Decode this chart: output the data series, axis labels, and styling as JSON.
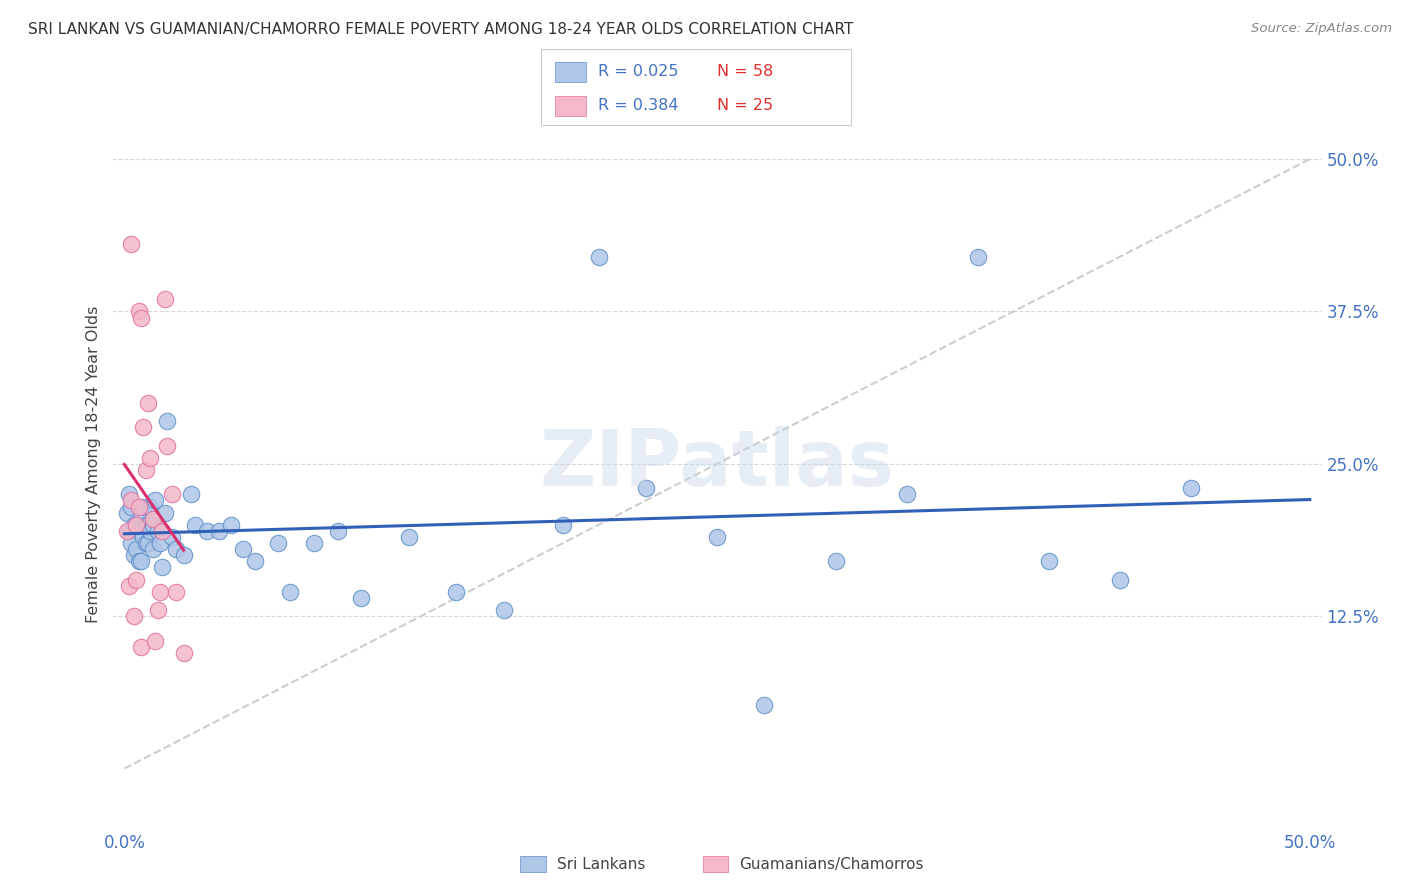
{
  "title": "SRI LANKAN VS GUAMANIAN/CHAMORRO FEMALE POVERTY AMONG 18-24 YEAR OLDS CORRELATION CHART",
  "source": "Source: ZipAtlas.com",
  "ylabel": "Female Poverty Among 18-24 Year Olds",
  "right_yticks": [
    "50.0%",
    "37.5%",
    "25.0%",
    "12.5%"
  ],
  "right_ytick_vals": [
    0.5,
    0.375,
    0.25,
    0.125
  ],
  "xlim": [
    0.0,
    0.5
  ],
  "ylim": [
    -0.05,
    0.55
  ],
  "legend_sri_r": "0.025",
  "legend_sri_n": "58",
  "legend_gua_r": "0.384",
  "legend_gua_n": "25",
  "watermark": "ZIPatlas",
  "sri_color": "#aec6e8",
  "gua_color": "#f4b8c8",
  "sri_edge_color": "#6090c8",
  "gua_edge_color": "#e070a0",
  "sri_line_color": "#3060b8",
  "gua_line_color": "#d83070",
  "diag_color": "#c8c8c8",
  "title_color": "#333333",
  "source_color": "#888888",
  "legend_r_color": "#4472c4",
  "legend_n_color": "#e03030",
  "axis_tick_color": "#4472c4",
  "grid_color": "#d8d8d8",
  "sri_x": [
    0.001,
    0.002,
    0.002,
    0.003,
    0.003,
    0.004,
    0.004,
    0.005,
    0.005,
    0.006,
    0.006,
    0.007,
    0.007,
    0.008,
    0.008,
    0.009,
    0.009,
    0.01,
    0.01,
    0.011,
    0.011,
    0.012,
    0.012,
    0.013,
    0.014,
    0.015,
    0.016,
    0.017,
    0.018,
    0.02,
    0.022,
    0.025,
    0.028,
    0.03,
    0.035,
    0.04,
    0.045,
    0.05,
    0.055,
    0.065,
    0.07,
    0.08,
    0.09,
    0.1,
    0.12,
    0.14,
    0.16,
    0.185,
    0.2,
    0.22,
    0.25,
    0.27,
    0.3,
    0.33,
    0.36,
    0.39,
    0.42,
    0.45
  ],
  "sri_y": [
    0.21,
    0.225,
    0.195,
    0.215,
    0.185,
    0.2,
    0.175,
    0.18,
    0.2,
    0.17,
    0.195,
    0.17,
    0.21,
    0.19,
    0.215,
    0.185,
    0.2,
    0.185,
    0.2,
    0.195,
    0.215,
    0.18,
    0.2,
    0.22,
    0.195,
    0.185,
    0.165,
    0.21,
    0.285,
    0.19,
    0.18,
    0.175,
    0.225,
    0.2,
    0.195,
    0.195,
    0.2,
    0.18,
    0.17,
    0.185,
    0.145,
    0.185,
    0.195,
    0.14,
    0.19,
    0.145,
    0.13,
    0.2,
    0.42,
    0.23,
    0.19,
    0.052,
    0.17,
    0.225,
    0.42,
    0.17,
    0.155,
    0.23
  ],
  "gua_x": [
    0.001,
    0.002,
    0.003,
    0.003,
    0.004,
    0.005,
    0.005,
    0.006,
    0.006,
    0.007,
    0.007,
    0.008,
    0.009,
    0.01,
    0.011,
    0.012,
    0.013,
    0.014,
    0.015,
    0.016,
    0.017,
    0.018,
    0.02,
    0.022,
    0.025
  ],
  "gua_y": [
    0.195,
    0.15,
    0.43,
    0.22,
    0.125,
    0.155,
    0.2,
    0.375,
    0.215,
    0.1,
    0.37,
    0.28,
    0.245,
    0.3,
    0.255,
    0.205,
    0.105,
    0.13,
    0.145,
    0.195,
    0.385,
    0.265,
    0.225,
    0.145,
    0.095
  ]
}
